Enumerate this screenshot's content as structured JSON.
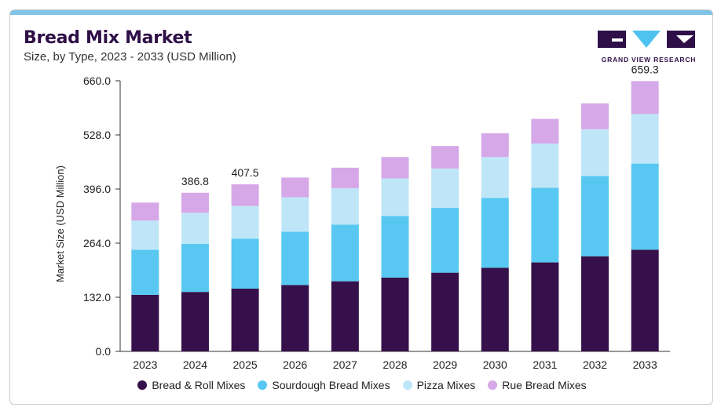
{
  "title": "Bread Mix Market",
  "subtitle": "Size, by Type, 2023 - 2033 (USD Million)",
  "logo": {
    "text": "GRAND VIEW RESEARCH",
    "colors": {
      "dark": "#2e0f47",
      "accent": "#4fc3f0"
    }
  },
  "chart_data": {
    "type": "bar",
    "stacked": true,
    "ylabel": "Market Size (USD Million)",
    "xlabel": "",
    "ylim": [
      0,
      660
    ],
    "yticks": [
      "0.0",
      "132.0",
      "264.0",
      "396.0",
      "528.0",
      "660.0"
    ],
    "categories": [
      "2023",
      "2024",
      "2025",
      "2026",
      "2027",
      "2028",
      "2029",
      "2030",
      "2031",
      "2032",
      "2033"
    ],
    "series": [
      {
        "name": "Bread & Roll Mixes",
        "color": "#35104a",
        "values": [
          138,
          145,
          153,
          162,
          171,
          180,
          192,
          204,
          217,
          232,
          248
        ]
      },
      {
        "name": "Sourdough Bread Mixes",
        "color": "#58c8f2",
        "values": [
          110,
          117,
          122,
          130,
          138,
          150,
          158,
          170,
          182,
          196,
          210
        ]
      },
      {
        "name": "Pizza Mixes",
        "color": "#bfe6f8",
        "values": [
          71,
          76,
          80,
          84,
          89,
          92,
          96,
          100,
          108,
          114,
          121
        ]
      },
      {
        "name": "Rue Bread Mixes",
        "color": "#d6a8e8",
        "values": [
          44,
          48.8,
          52.5,
          48,
          50,
          52,
          55,
          58,
          60,
          63,
          80.3
        ]
      }
    ],
    "data_labels": [
      {
        "category": "2024",
        "text": "386.8"
      },
      {
        "category": "2025",
        "text": "407.5"
      },
      {
        "category": "2033",
        "text": "659.3"
      }
    ],
    "grid": false,
    "legend": "bottom"
  }
}
